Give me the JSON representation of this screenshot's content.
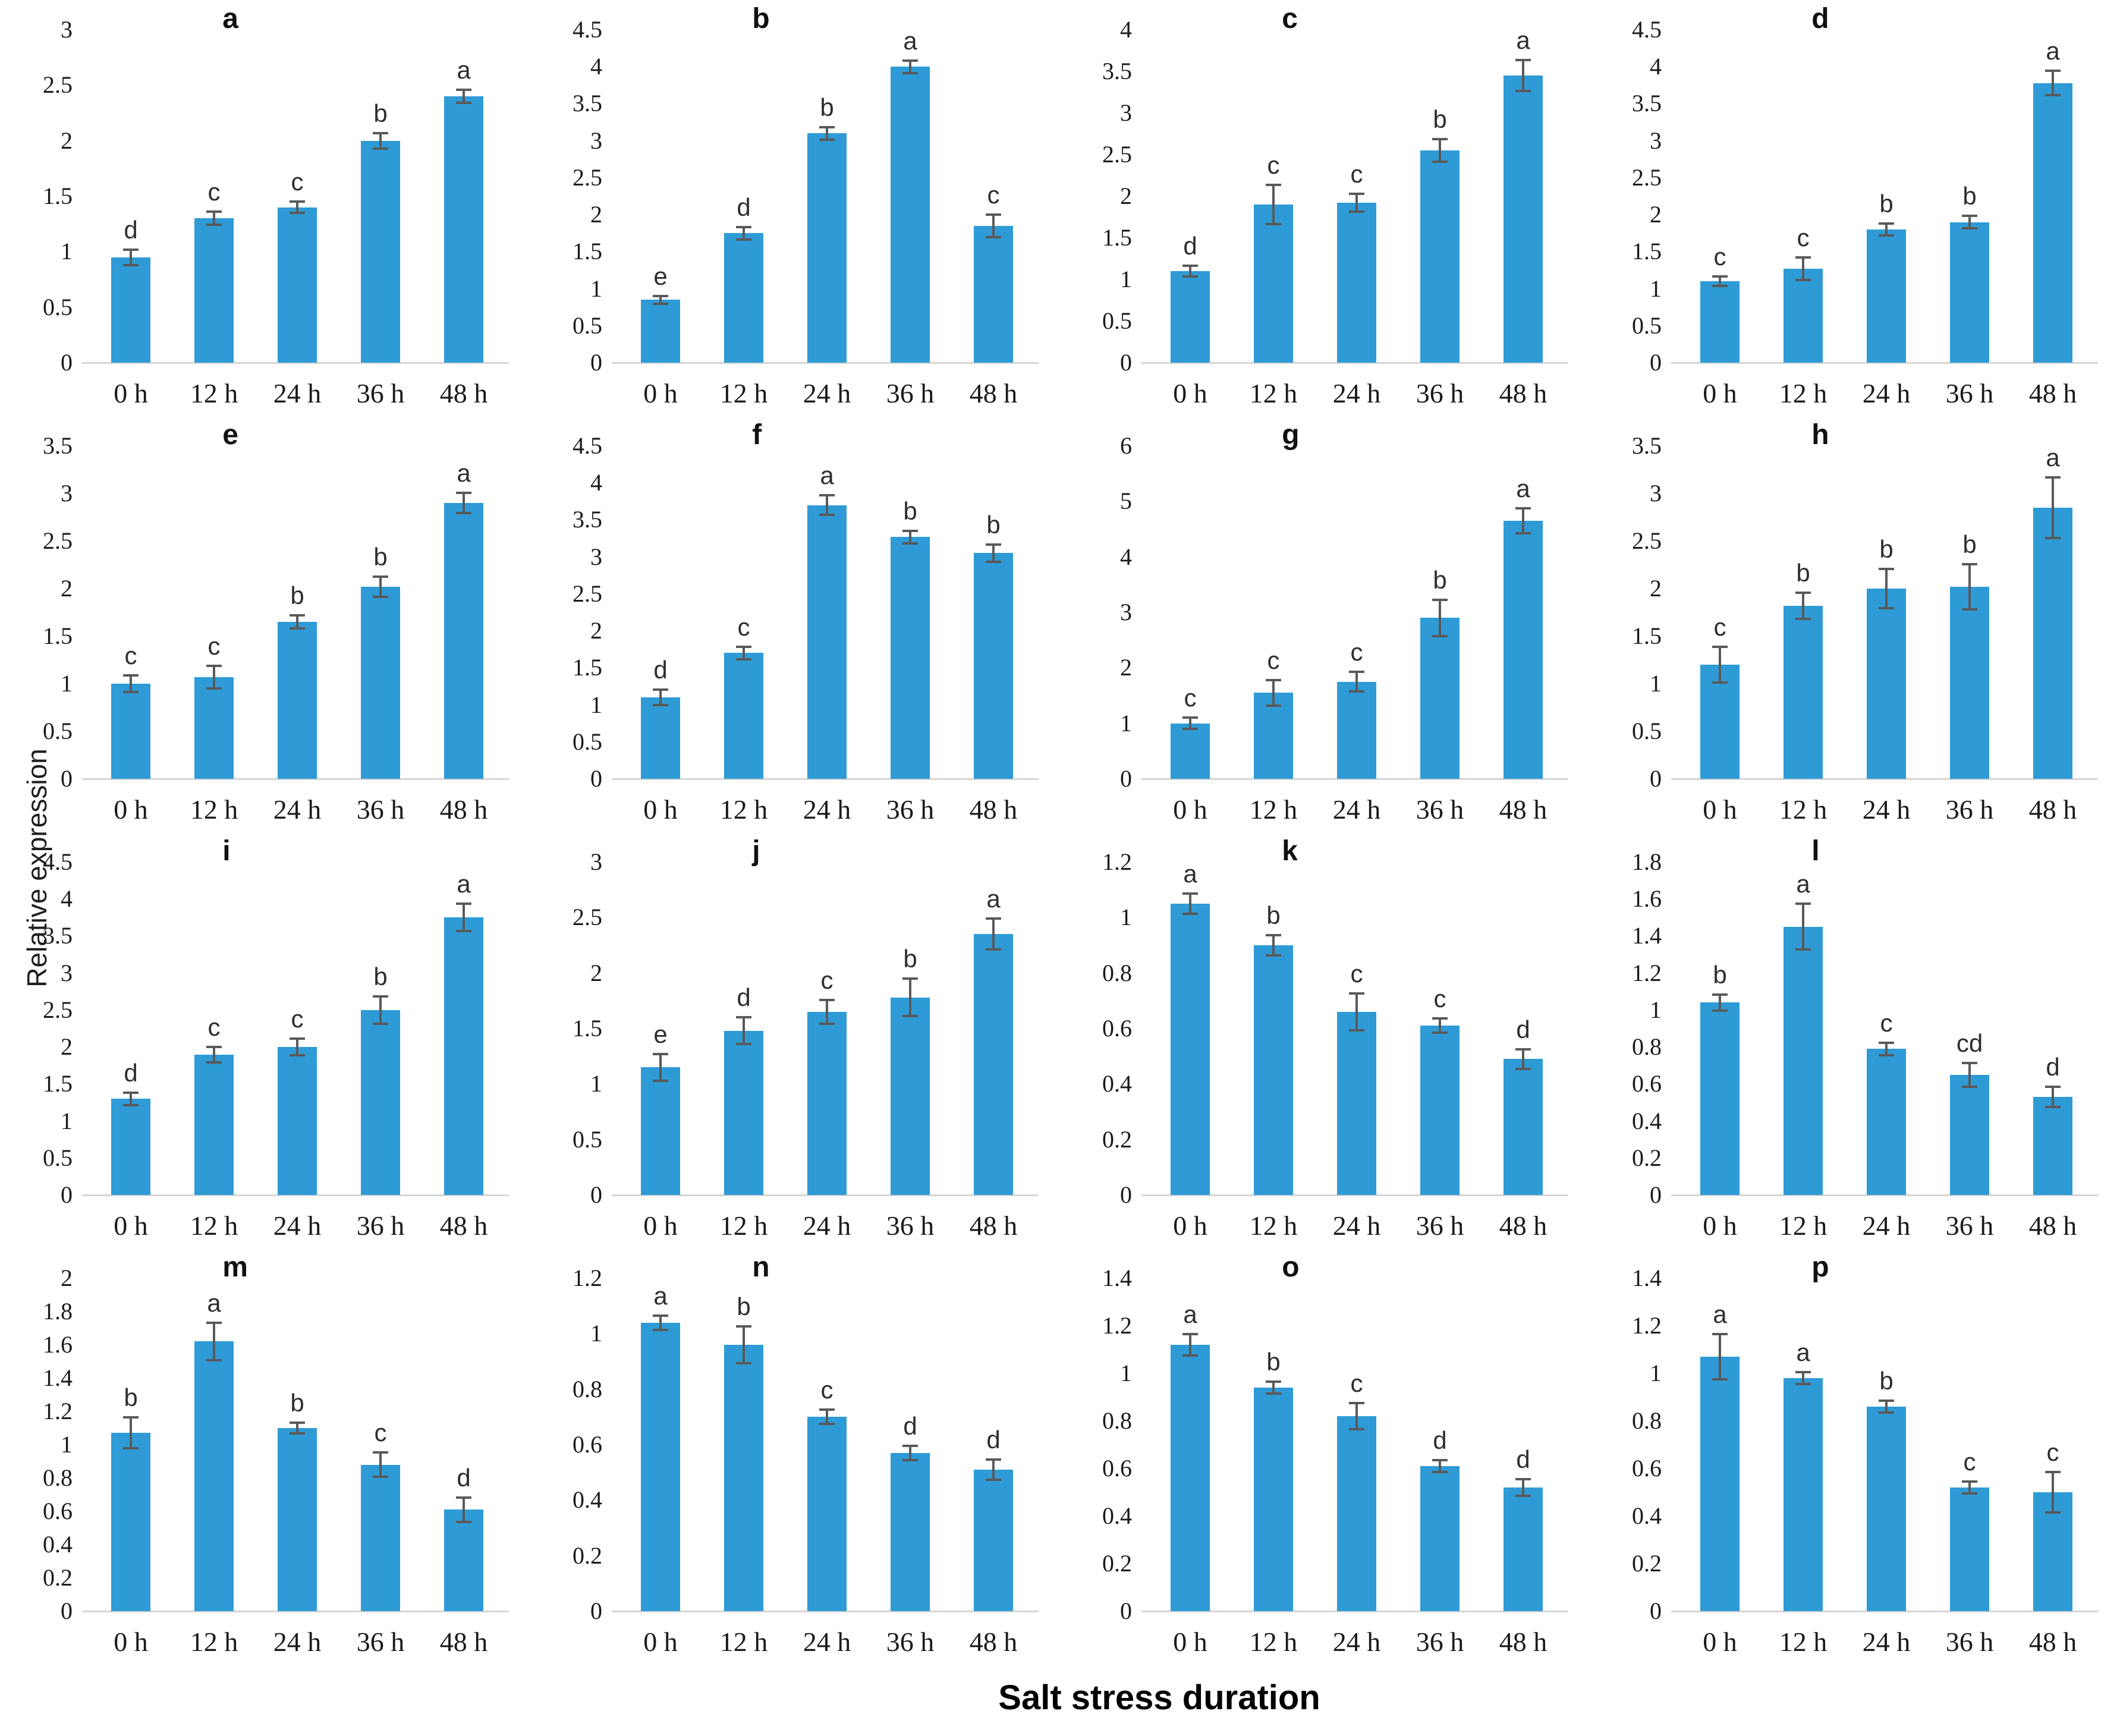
{
  "figure": {
    "bar_color": "#2E9BD6",
    "error_bar_color": "#595959",
    "axis_line_color": "#d6d6d6"
  },
  "chart_data": {
    "type": "bar",
    "layout": "4x4-grid",
    "xlabel": "Salt stress duration",
    "ylabel": "Relative expression",
    "categories": [
      "0 h",
      "12 h",
      "24 h",
      "36 h",
      "48 h"
    ],
    "error_bars": true,
    "legend": "none",
    "grid_lines": "off",
    "panels": [
      {
        "label": "a",
        "ylim": [
          0,
          3
        ],
        "ystep": 0.5,
        "values": [
          0.95,
          1.3,
          1.4,
          2.0,
          2.4
        ],
        "errors": [
          0.08,
          0.07,
          0.06,
          0.08,
          0.07
        ],
        "sig_letters": [
          "d",
          "c",
          "c",
          "b",
          "a"
        ]
      },
      {
        "label": "b",
        "ylim": [
          0,
          4.5
        ],
        "ystep": 0.5,
        "values": [
          0.85,
          1.75,
          3.1,
          4.0,
          1.85
        ],
        "errors": [
          0.07,
          0.1,
          0.1,
          0.1,
          0.17
        ],
        "sig_letters": [
          "e",
          "d",
          "b",
          "a",
          "c"
        ]
      },
      {
        "label": "c",
        "ylim": [
          0,
          4
        ],
        "ystep": 0.5,
        "values": [
          1.1,
          1.9,
          1.92,
          2.55,
          3.45
        ],
        "errors": [
          0.08,
          0.25,
          0.12,
          0.15,
          0.2
        ],
        "sig_letters": [
          "d",
          "c",
          "c",
          "b",
          "a"
        ]
      },
      {
        "label": "d",
        "ylim": [
          0,
          4.5
        ],
        "ystep": 0.5,
        "values": [
          1.1,
          1.27,
          1.8,
          1.9,
          3.78
        ],
        "errors": [
          0.08,
          0.17,
          0.1,
          0.1,
          0.18
        ],
        "sig_letters": [
          "c",
          "c",
          "b",
          "b",
          "a"
        ]
      },
      {
        "label": "e",
        "ylim": [
          0,
          3.5
        ],
        "ystep": 0.5,
        "values": [
          1.0,
          1.07,
          1.65,
          2.02,
          2.9
        ],
        "errors": [
          0.1,
          0.13,
          0.08,
          0.12,
          0.12
        ],
        "sig_letters": [
          "c",
          "c",
          "b",
          "b",
          "a"
        ]
      },
      {
        "label": "f",
        "ylim": [
          0,
          4.5
        ],
        "ystep": 0.5,
        "values": [
          1.1,
          1.7,
          3.7,
          3.27,
          3.05
        ],
        "errors": [
          0.12,
          0.1,
          0.15,
          0.1,
          0.13
        ],
        "sig_letters": [
          "d",
          "c",
          "a",
          "b",
          "b"
        ]
      },
      {
        "label": "g",
        "ylim": [
          0,
          6
        ],
        "ystep": 1,
        "values": [
          1.0,
          1.55,
          1.75,
          2.9,
          4.65
        ],
        "errors": [
          0.12,
          0.25,
          0.2,
          0.35,
          0.25
        ],
        "sig_letters": [
          "c",
          "c",
          "c",
          "b",
          "a"
        ]
      },
      {
        "label": "h",
        "ylim": [
          0,
          3.5
        ],
        "ystep": 0.5,
        "values": [
          1.2,
          1.82,
          2.0,
          2.02,
          2.85
        ],
        "errors": [
          0.2,
          0.15,
          0.22,
          0.25,
          0.33
        ],
        "sig_letters": [
          "c",
          "b",
          "b",
          "b",
          "a"
        ]
      },
      {
        "label": "i",
        "ylim": [
          0,
          4.5
        ],
        "ystep": 0.5,
        "values": [
          1.3,
          1.9,
          2.0,
          2.5,
          3.75
        ],
        "errors": [
          0.1,
          0.12,
          0.13,
          0.2,
          0.2
        ],
        "sig_letters": [
          "d",
          "c",
          "c",
          "b",
          "a"
        ]
      },
      {
        "label": "j",
        "ylim": [
          0,
          3
        ],
        "ystep": 0.5,
        "values": [
          1.15,
          1.48,
          1.65,
          1.78,
          2.35
        ],
        "errors": [
          0.13,
          0.13,
          0.12,
          0.18,
          0.15
        ],
        "sig_letters": [
          "e",
          "d",
          "c",
          "b",
          "a"
        ]
      },
      {
        "label": "k",
        "ylim": [
          0,
          1.2
        ],
        "ystep": 0.2,
        "values": [
          1.05,
          0.9,
          0.66,
          0.61,
          0.49
        ],
        "errors": [
          0.04,
          0.04,
          0.07,
          0.03,
          0.04
        ],
        "sig_letters": [
          "a",
          "b",
          "c",
          "c",
          "d"
        ]
      },
      {
        "label": "l",
        "ylim": [
          0,
          1.8
        ],
        "ystep": 0.2,
        "values": [
          1.04,
          1.45,
          0.79,
          0.65,
          0.53
        ],
        "errors": [
          0.05,
          0.13,
          0.04,
          0.07,
          0.06
        ],
        "sig_letters": [
          "b",
          "a",
          "c",
          "cd",
          "d"
        ]
      },
      {
        "label": "m",
        "ylim": [
          0,
          2
        ],
        "ystep": 0.2,
        "values": [
          1.07,
          1.62,
          1.1,
          0.88,
          0.61
        ],
        "errors": [
          0.1,
          0.12,
          0.04,
          0.08,
          0.08
        ],
        "sig_letters": [
          "b",
          "a",
          "b",
          "c",
          "d"
        ]
      },
      {
        "label": "n",
        "ylim": [
          0,
          1.2
        ],
        "ystep": 0.2,
        "values": [
          1.04,
          0.96,
          0.7,
          0.57,
          0.51
        ],
        "errors": [
          0.03,
          0.07,
          0.03,
          0.03,
          0.04
        ],
        "sig_letters": [
          "a",
          "b",
          "c",
          "d",
          "d"
        ]
      },
      {
        "label": "o",
        "ylim": [
          0,
          1.4
        ],
        "ystep": 0.2,
        "values": [
          1.12,
          0.94,
          0.82,
          0.61,
          0.52
        ],
        "errors": [
          0.05,
          0.03,
          0.06,
          0.03,
          0.04
        ],
        "sig_letters": [
          "a",
          "b",
          "c",
          "d",
          "d"
        ]
      },
      {
        "label": "p",
        "ylim": [
          0,
          1.4
        ],
        "ystep": 0.2,
        "values": [
          1.07,
          0.98,
          0.86,
          0.52,
          0.5
        ],
        "errors": [
          0.1,
          0.03,
          0.03,
          0.03,
          0.09
        ],
        "sig_letters": [
          "a",
          "a",
          "b",
          "c",
          "c"
        ]
      }
    ]
  }
}
